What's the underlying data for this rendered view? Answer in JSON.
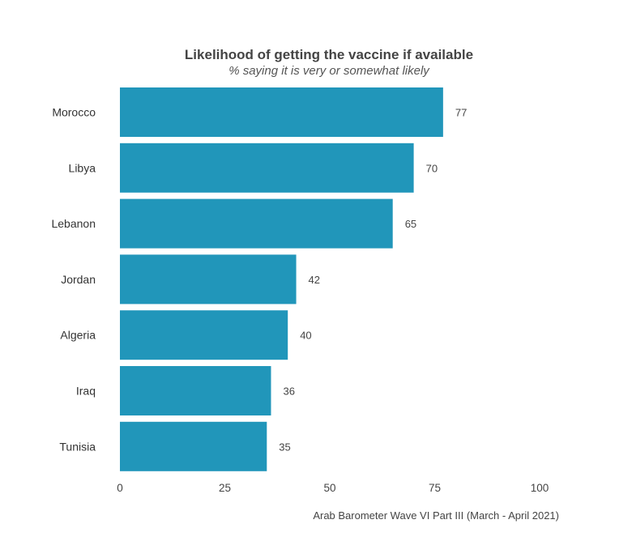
{
  "chart_data": {
    "type": "bar",
    "orientation": "horizontal",
    "title": "Likelihood of getting the vaccine if available",
    "subtitle": "% saying it is very or somewhat likely",
    "categories": [
      "Morocco",
      "Libya",
      "Lebanon",
      "Jordan",
      "Algeria",
      "Iraq",
      "Tunisia"
    ],
    "values": [
      77,
      70,
      65,
      42,
      40,
      36,
      35
    ],
    "xlim": [
      0,
      100
    ],
    "xticks": [
      0,
      25,
      50,
      75,
      100
    ],
    "xtick_labels": [
      "0",
      "25",
      "50",
      "75",
      "100"
    ],
    "xlabel": "",
    "ylabel": "",
    "grid": false,
    "legend": "none",
    "bar_color": "#2196BA",
    "caption": "Arab Barometer Wave VI Part III (March - April 2021)"
  }
}
